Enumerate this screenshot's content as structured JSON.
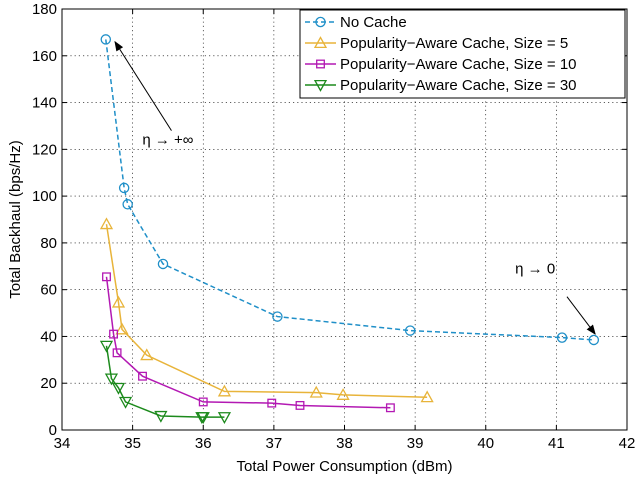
{
  "chart_data": {
    "type": "line",
    "title": "",
    "xlabel": "Total Power Consumption (dBm)",
    "ylabel": "Total Backhaul (bps/Hz)",
    "xlim": [
      34,
      42
    ],
    "ylim": [
      0,
      180
    ],
    "xticks": [
      "34",
      "35",
      "36",
      "37",
      "38",
      "39",
      "40",
      "41",
      "42"
    ],
    "yticks": [
      "0",
      "20",
      "40",
      "60",
      "80",
      "100",
      "120",
      "140",
      "160",
      "180"
    ],
    "grid": true,
    "legend_position": "top-right",
    "series": [
      {
        "name": "No Cache",
        "color": "#1f8fc8",
        "line_style": "dashed",
        "marker": "circle",
        "points": [
          [
            34.62,
            167
          ],
          [
            34.88,
            103.5
          ],
          [
            34.93,
            96.5
          ],
          [
            35.43,
            71
          ],
          [
            37.05,
            48.5
          ],
          [
            38.93,
            42.5
          ],
          [
            41.08,
            39.5
          ],
          [
            41.53,
            38.5
          ]
        ]
      },
      {
        "name": "Popularity−Aware Cache, Size = 5",
        "color": "#e8b43a",
        "line_style": "solid",
        "marker": "triangle-up",
        "points": [
          [
            34.63,
            88
          ],
          [
            34.8,
            54.5
          ],
          [
            34.85,
            43
          ],
          [
            35.2,
            32
          ],
          [
            36.3,
            16.5
          ],
          [
            37.6,
            16
          ],
          [
            37.98,
            15
          ],
          [
            39.17,
            14
          ]
        ]
      },
      {
        "name": "Popularity−Aware Cache, Size = 10",
        "color": "#b319b3",
        "line_style": "solid",
        "marker": "square",
        "points": [
          [
            34.63,
            65.5
          ],
          [
            34.73,
            41
          ],
          [
            34.78,
            33
          ],
          [
            35.14,
            23
          ],
          [
            36.0,
            12
          ],
          [
            36.97,
            11.5
          ],
          [
            37.37,
            10.5
          ],
          [
            38.65,
            9.5
          ]
        ]
      },
      {
        "name": "Popularity−Aware Cache, Size = 30",
        "color": "#1c8a1c",
        "line_style": "solid",
        "marker": "triangle-down",
        "points": [
          [
            34.63,
            36
          ],
          [
            34.7,
            22
          ],
          [
            34.8,
            18
          ],
          [
            34.9,
            12
          ],
          [
            35.4,
            6
          ],
          [
            35.98,
            5.5
          ],
          [
            36.0,
            5.5
          ],
          [
            36.3,
            5.5
          ]
        ]
      }
    ],
    "annotations": [
      {
        "text": "η → +∞",
        "label_at": [
          35.5,
          122
        ],
        "arrow_from": [
          35.55,
          128
        ],
        "arrow_to": [
          34.75,
          166
        ]
      },
      {
        "text": "η → 0",
        "label_at": [
          40.7,
          67
        ],
        "arrow_from": [
          41.15,
          57
        ],
        "arrow_to": [
          41.55,
          41
        ]
      }
    ]
  }
}
